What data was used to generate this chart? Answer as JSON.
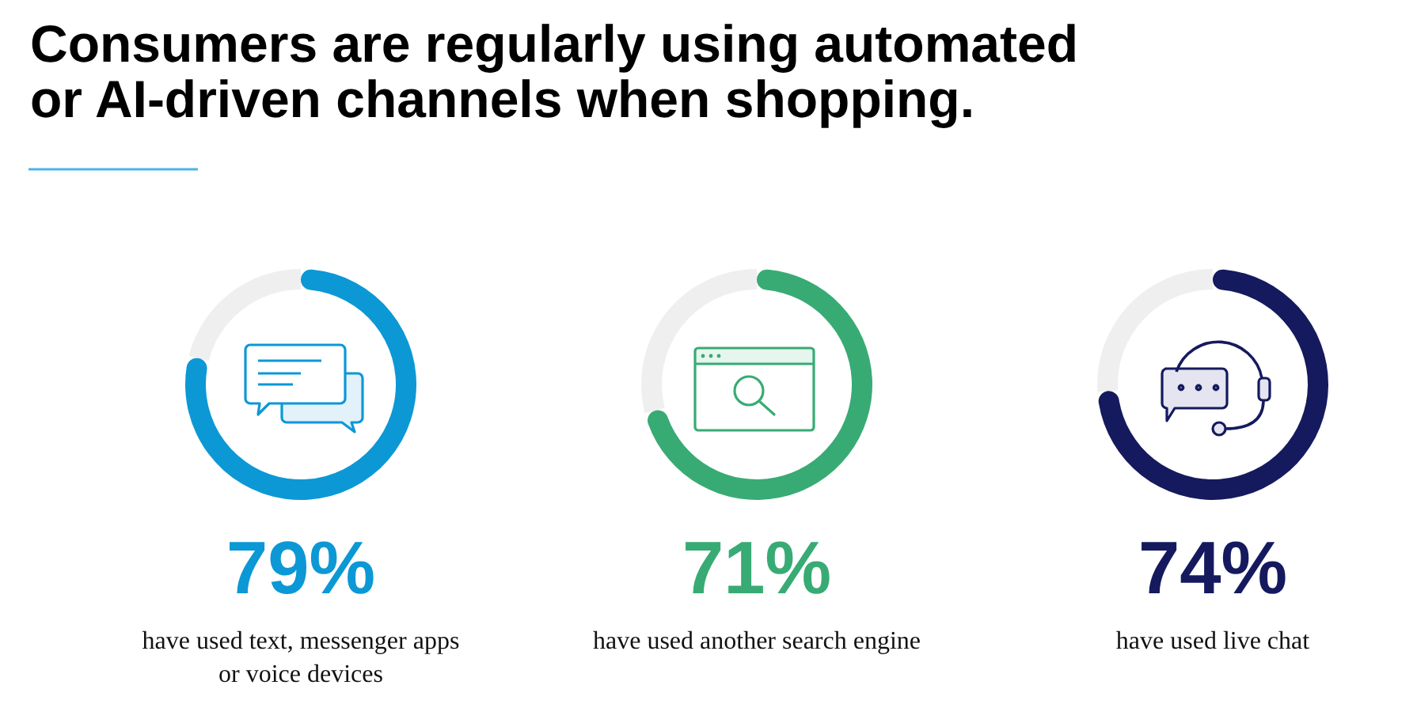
{
  "chart_data": [
    {
      "type": "donut",
      "title": "Consumers are regularly using automated or AI-driven channels when shopping.",
      "categories": [
        "have used text, messenger apps or voice devices",
        null
      ],
      "values": [
        79,
        21
      ],
      "colors": [
        "#0c98d5",
        "#efefef"
      ],
      "value_labels": [
        "79%",
        null
      ]
    },
    {
      "type": "donut",
      "categories": [
        "have used another search engine",
        null
      ],
      "values": [
        71,
        29
      ],
      "colors": [
        "#38ab74",
        "#efefef"
      ],
      "value_labels": [
        "71%",
        null
      ]
    },
    {
      "type": "donut",
      "categories": [
        "have used live chat",
        null
      ],
      "values": [
        74,
        26
      ],
      "colors": [
        "#151a5e",
        "#efefef"
      ],
      "value_labels": [
        "74%",
        null
      ]
    }
  ]
}
